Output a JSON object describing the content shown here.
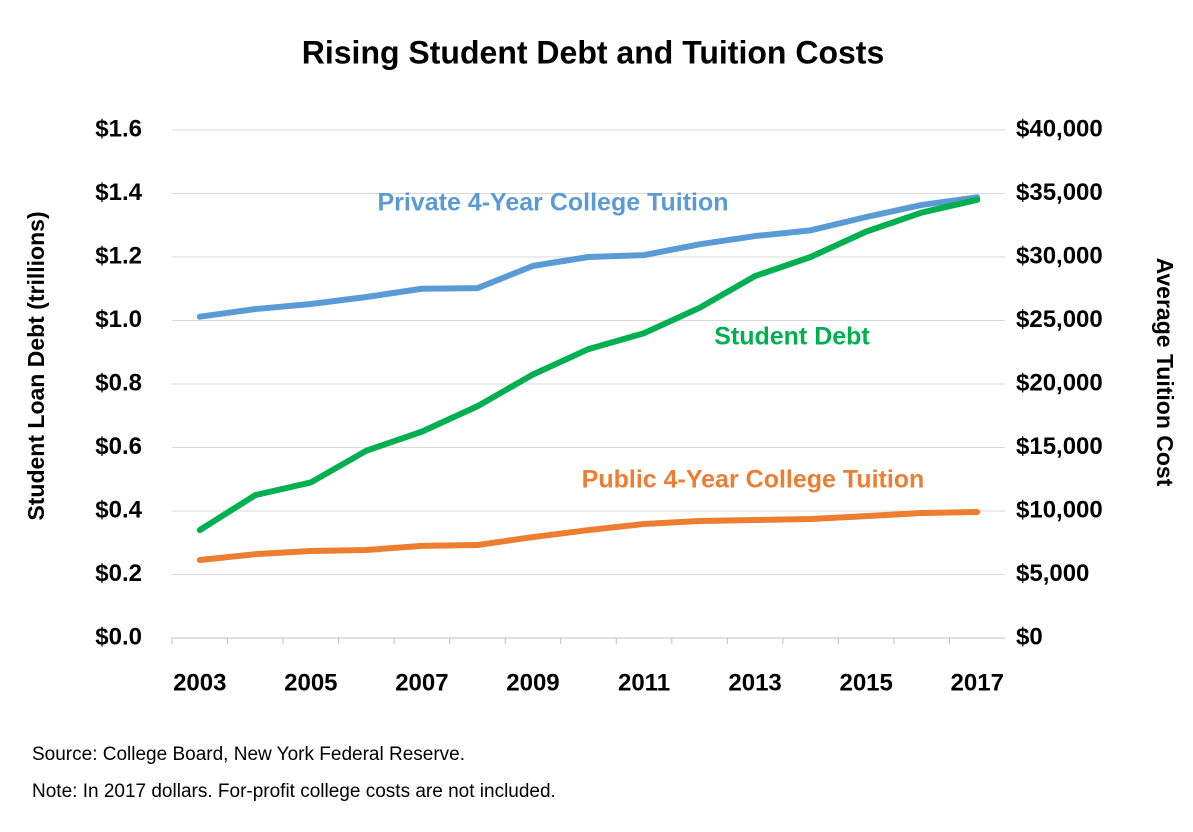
{
  "chart_data": {
    "type": "line",
    "title": "Rising Student Debt and Tuition Costs",
    "y_label": "Student Loan Debt  (trillions)",
    "y2_label": "Average Tuition Cost",
    "source": "Source: College Board, New York Federal Reserve.",
    "note": "Note: In 2017 dollars. For-profit college costs are not included.",
    "x": [
      2003,
      2004,
      2005,
      2006,
      2007,
      2008,
      2009,
      2010,
      2011,
      2012,
      2013,
      2014,
      2015,
      2016,
      2017
    ],
    "xlim": [
      2002.5,
      2017.5
    ],
    "xticks": [
      2003,
      2005,
      2007,
      2009,
      2011,
      2013,
      2015,
      2017
    ],
    "ylim": [
      0,
      1.6
    ],
    "yticks": [
      {
        "value": 0,
        "label": "$0.0"
      },
      {
        "value": 0.2,
        "label": "$0.2"
      },
      {
        "value": 0.4,
        "label": "$0.4"
      },
      {
        "value": 0.6,
        "label": "$0.6"
      },
      {
        "value": 0.8,
        "label": "$0.8"
      },
      {
        "value": 1.0,
        "label": "$1.0"
      },
      {
        "value": 1.2,
        "label": "$1.2"
      },
      {
        "value": 1.4,
        "label": "$1.4"
      },
      {
        "value": 1.6,
        "label": "$1.6"
      }
    ],
    "y2lim": [
      0,
      40000
    ],
    "y2ticks": [
      {
        "value": 0,
        "label": "$0"
      },
      {
        "value": 5000,
        "label": "$5,000"
      },
      {
        "value": 10000,
        "label": "$10,000"
      },
      {
        "value": 15000,
        "label": "$15,000"
      },
      {
        "value": 20000,
        "label": "$20,000"
      },
      {
        "value": 25000,
        "label": "$25,000"
      },
      {
        "value": 30000,
        "label": "$30,000"
      },
      {
        "value": 35000,
        "label": "$35,000"
      },
      {
        "value": 40000,
        "label": "$40,000"
      }
    ],
    "grid": true,
    "series": [
      {
        "name": "Private 4-Year College Tuition",
        "color": "#5b9bd5",
        "axis": "y2",
        "values": [
          25300,
          25900,
          26300,
          26850,
          27500,
          27550,
          29300,
          30000,
          30150,
          31000,
          31650,
          32100,
          33150,
          34100,
          34700
        ]
      },
      {
        "name": "Student Debt",
        "color": "#00b050",
        "axis": "y",
        "values": [
          0.34,
          0.45,
          0.49,
          0.59,
          0.65,
          0.73,
          0.83,
          0.91,
          0.96,
          1.04,
          1.14,
          1.2,
          1.28,
          1.34,
          1.38
        ]
      },
      {
        "name": "Public 4-Year College Tuition",
        "color": "#ed7d31",
        "axis": "y2",
        "values": [
          6140,
          6600,
          6850,
          6930,
          7250,
          7320,
          7950,
          8500,
          8980,
          9210,
          9290,
          9370,
          9600,
          9840,
          9920
        ]
      }
    ]
  }
}
